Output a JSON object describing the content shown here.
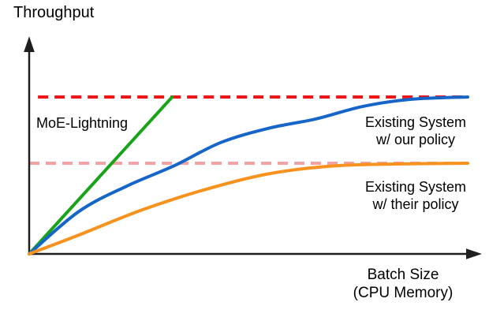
{
  "labels": {
    "y_axis": "Throughput",
    "x_axis_line1": "Batch Size",
    "x_axis_line2": "(CPU Memory)",
    "moe_lightning": "MoE-Lightning",
    "existing_our_line1": "Existing System",
    "existing_our_line2": "w/ our policy",
    "existing_their_line1": "Existing System",
    "existing_their_line2": "w/ their policy"
  },
  "colors": {
    "background": "#FFFFFF",
    "text": "#000000",
    "axis": "#1F1F1F",
    "moe_lightning_green": "#18A318",
    "existing_our_blue": "#1566C8",
    "existing_their_orange": "#F7921E",
    "upper_ceiling_red": "#ED1515",
    "lower_ceiling_pink": "#F2A3A3"
  },
  "chart_data": {
    "type": "line",
    "title": "",
    "xlabel": "Batch Size (CPU Memory)",
    "ylabel": "Throughput",
    "grid": false,
    "legend": "inline-annotations",
    "note": "Conceptual sketch with unlabeled axes; values are normalized estimates where y=1.0 is the red dashed throughput ceiling and x=1.0 is the right end of the drawn curves.",
    "x_range_normalized": [
      0,
      1
    ],
    "y_range_normalized": [
      0,
      1.0
    ],
    "series": [
      {
        "name": "MoE-Lightning",
        "color": "#18A318",
        "style": "solid",
        "x": [
          0,
          0.326
        ],
        "y": [
          0,
          1.0
        ]
      },
      {
        "name": "Existing System w/ our policy",
        "color": "#1566C8",
        "style": "solid",
        "x": [
          0,
          0.113,
          0.221,
          0.329,
          0.437,
          0.545,
          0.653,
          0.761,
          0.869,
          1.0
        ],
        "y": [
          0,
          0.27,
          0.43,
          0.56,
          0.71,
          0.8,
          0.86,
          0.94,
          0.985,
          1.0
        ]
      },
      {
        "name": "Existing System w/ their policy",
        "color": "#F7921E",
        "style": "solid",
        "x": [
          0,
          0.113,
          0.257,
          0.401,
          0.545,
          0.689,
          0.833,
          1.0
        ],
        "y": [
          0,
          0.12,
          0.28,
          0.41,
          0.51,
          0.56,
          0.573,
          0.578
        ]
      }
    ],
    "reference_lines": [
      {
        "name": "moe-lightning-ceiling",
        "y": 1.0,
        "x_start": 0.02,
        "x_end": 1.0,
        "color": "#ED1515",
        "style": "dashed"
      },
      {
        "name": "existing-system-ceiling",
        "y": 0.578,
        "x_start": 0.0,
        "x_end": 1.0,
        "color": "#F2A3A3",
        "style": "dashed"
      }
    ]
  }
}
